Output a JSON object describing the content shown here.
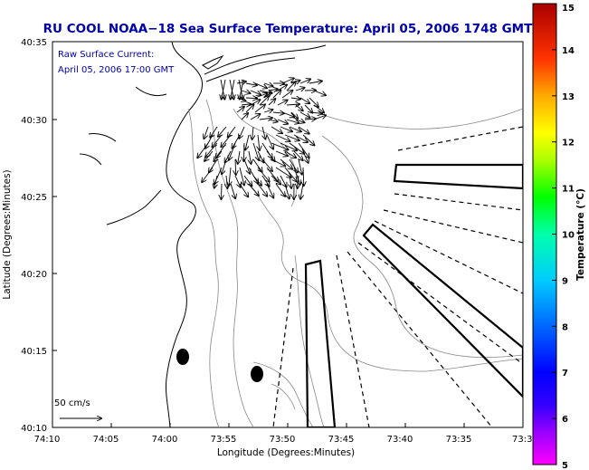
{
  "map": {
    "title": "RU COOL  NOAA−18  Sea Surface Temperature:  April 05, 2006 1748 GMT",
    "current_label_line1": "Raw Surface Current:",
    "current_label_line2": "April 05, 2006 17:00 GMT",
    "scale_label": "50 cm/s",
    "x_axis_label": "Longitude (Degrees:Minutes)",
    "y_axis_label": "Latitude (Degrees:Minutes)",
    "x_ticks": [
      "74:10",
      "74:05",
      "74:00",
      "73:55",
      "73:50",
      "73:45",
      "73:40",
      "73:35",
      "73:3"
    ],
    "y_ticks": [
      "40:35",
      "40:30",
      "40:25",
      "40:20",
      "40:15",
      "40:10"
    ]
  },
  "colorbar": {
    "label": "Temperature (°C)",
    "ticks": [
      "15",
      "14",
      "13",
      "12",
      "11",
      "10",
      "9",
      "8",
      "7",
      "6",
      "5"
    ],
    "colors": [
      "#ff00ff",
      "#8800ff",
      "#0000ff",
      "#0077ff",
      "#00ccff",
      "#00ffaa",
      "#00ff00",
      "#aaff00",
      "#ffff00",
      "#ffaa00",
      "#ff3300",
      "#aa0000"
    ]
  }
}
